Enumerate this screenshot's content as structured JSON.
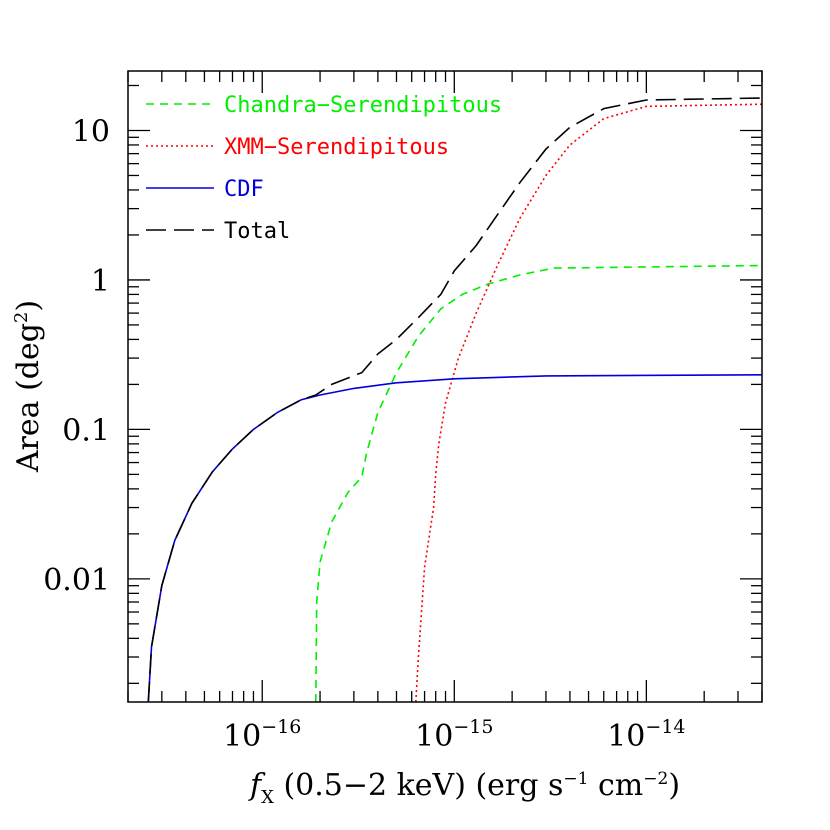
{
  "chart_data": {
    "type": "line",
    "x_scale": "log",
    "y_scale": "log",
    "xlim": [
      2e-17,
      4e-14
    ],
    "ylim": [
      0.0015,
      25
    ],
    "grid": false,
    "legend_position": "top-left",
    "xlabel": "f_X (0.5-2 keV) (erg s^-1 cm^-2)",
    "ylabel": "Area (deg^2)",
    "x_ticks": [
      {
        "value": 1e-16,
        "base": "10",
        "exp": "−16"
      },
      {
        "value": 1e-15,
        "base": "10",
        "exp": "−15"
      },
      {
        "value": 1e-14,
        "base": "10",
        "exp": "−14"
      }
    ],
    "y_ticks": [
      {
        "value": 0.01,
        "label": "0.01"
      },
      {
        "value": 0.1,
        "label": "0.1"
      },
      {
        "value": 1,
        "label": "1"
      },
      {
        "value": 10,
        "label": "10"
      }
    ],
    "series": [
      {
        "name": "Chandra−Serendipitous",
        "color": "#00ee00",
        "dash": "8,6",
        "points": [
          [
            1.9e-16,
            0.0015
          ],
          [
            1.92e-16,
            0.007
          ],
          [
            2e-16,
            0.013
          ],
          [
            2.3e-16,
            0.024
          ],
          [
            2.8e-16,
            0.038
          ],
          [
            3.3e-16,
            0.048
          ],
          [
            3.5e-16,
            0.07
          ],
          [
            4e-16,
            0.13
          ],
          [
            5e-16,
            0.24
          ],
          [
            6.5e-16,
            0.42
          ],
          [
            8.5e-16,
            0.64
          ],
          [
            1.1e-15,
            0.8
          ],
          [
            1.5e-15,
            0.94
          ],
          [
            2.2e-15,
            1.08
          ],
          [
            3.3e-15,
            1.2
          ],
          [
            4e-14,
            1.25
          ]
        ]
      },
      {
        "name": "XMM−Serendipitous",
        "color": "#ff0000",
        "dash": "2,3",
        "points": [
          [
            6.3e-16,
            0.0015
          ],
          [
            6.5e-16,
            0.003
          ],
          [
            7e-16,
            0.012
          ],
          [
            7.8e-16,
            0.03
          ],
          [
            8e-16,
            0.05
          ],
          [
            8.3e-16,
            0.08
          ],
          [
            9e-16,
            0.15
          ],
          [
            1.05e-15,
            0.3
          ],
          [
            1.3e-15,
            0.6
          ],
          [
            1.7e-15,
            1.3
          ],
          [
            2.2e-15,
            2.6
          ],
          [
            3e-15,
            5.0
          ],
          [
            4e-15,
            8.0
          ],
          [
            6e-15,
            12
          ],
          [
            1e-14,
            14.5
          ],
          [
            4e-14,
            15
          ]
        ]
      },
      {
        "name": "CDF",
        "color": "#0000dd",
        "dash": "",
        "points": [
          [
            2.55e-17,
            0.0015
          ],
          [
            2.65e-17,
            0.0035
          ],
          [
            3e-17,
            0.009
          ],
          [
            3.5e-17,
            0.018
          ],
          [
            4.3e-17,
            0.032
          ],
          [
            5.5e-17,
            0.052
          ],
          [
            7e-17,
            0.074
          ],
          [
            9e-17,
            0.1
          ],
          [
            1.2e-16,
            0.13
          ],
          [
            1.6e-16,
            0.158
          ],
          [
            2e-16,
            0.17
          ],
          [
            3e-16,
            0.188
          ],
          [
            5e-16,
            0.205
          ],
          [
            1e-15,
            0.218
          ],
          [
            3e-15,
            0.228
          ],
          [
            4e-14,
            0.232
          ]
        ]
      },
      {
        "name": "Total",
        "color": "#000000",
        "dash": "20,8",
        "points": [
          [
            2.55e-17,
            0.0015
          ],
          [
            2.65e-17,
            0.0035
          ],
          [
            3e-17,
            0.009
          ],
          [
            3.5e-17,
            0.018
          ],
          [
            4.3e-17,
            0.032
          ],
          [
            5.5e-17,
            0.052
          ],
          [
            7e-17,
            0.074
          ],
          [
            9e-17,
            0.1
          ],
          [
            1.2e-16,
            0.13
          ],
          [
            1.6e-16,
            0.158
          ],
          [
            1.9e-16,
            0.17
          ],
          [
            2.3e-16,
            0.2
          ],
          [
            3.3e-16,
            0.24
          ],
          [
            4e-16,
            0.32
          ],
          [
            5e-16,
            0.4
          ],
          [
            6.5e-16,
            0.56
          ],
          [
            8.5e-16,
            0.8
          ],
          [
            1e-15,
            1.15
          ],
          [
            1.3e-15,
            1.7
          ],
          [
            1.7e-15,
            2.8
          ],
          [
            2.2e-15,
            4.5
          ],
          [
            3e-15,
            7.5
          ],
          [
            4e-15,
            10.5
          ],
          [
            6e-15,
            14
          ],
          [
            1e-14,
            16
          ],
          [
            4e-14,
            16.5
          ]
        ]
      }
    ]
  }
}
